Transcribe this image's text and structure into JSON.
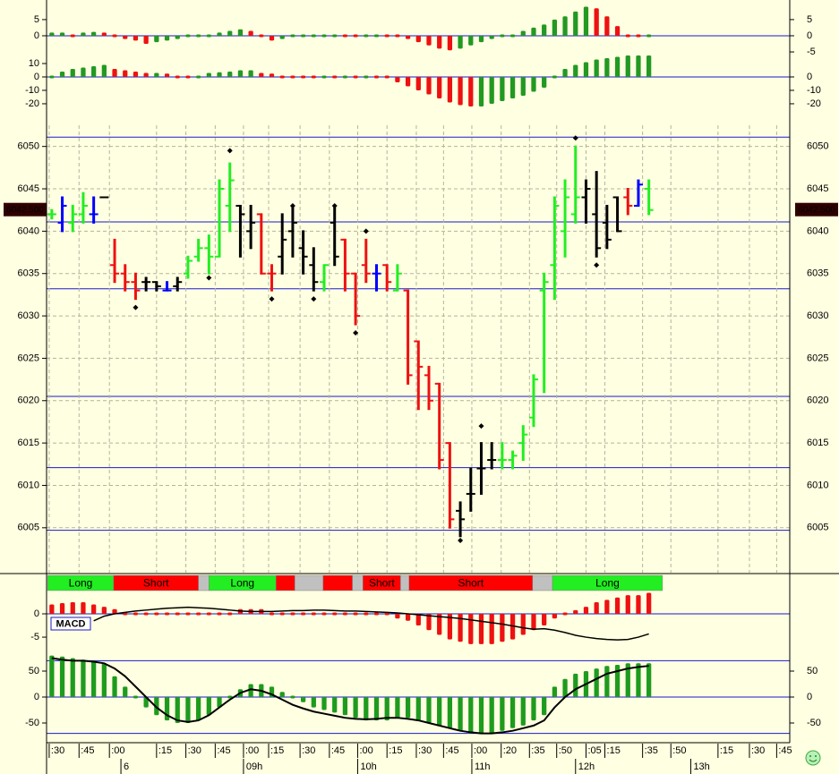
{
  "chart_data": [
    {
      "type": "bar",
      "up_color": "#229922",
      "down_color": "#ee1111",
      "xlim": [
        -0.5,
        70.45
      ],
      "ylim": [
        -6.1,
        9.4
      ],
      "yticks": [
        5,
        0
      ],
      "y2lim": [
        -6.1,
        9.4
      ],
      "y2ticks": [
        5,
        0,
        -5
      ],
      "hlines": [
        0
      ],
      "values": [
        1,
        1,
        0.8,
        1,
        1.2,
        1,
        0,
        -1,
        -1.5,
        -2.5,
        -2,
        -1.5,
        -1,
        -0.5,
        0.3,
        0.8,
        1,
        1.5,
        2,
        1.5,
        -0.5,
        -1.5,
        -1,
        -0.5,
        0,
        0.3,
        0.3,
        0.5,
        0.3,
        0,
        0.3,
        0.3,
        0.2,
        0,
        -1,
        -2,
        -3,
        -4,
        -4.5,
        -4,
        -3,
        -2,
        -1,
        -0.5,
        0.5,
        1.5,
        2.5,
        3.5,
        5,
        6,
        7.5,
        9,
        8.5,
        6,
        3,
        0.8,
        0.3,
        0.3
      ]
    },
    {
      "type": "bar",
      "up_color": "#229922",
      "down_color": "#ee1111",
      "xlim": [
        -0.5,
        70.45
      ],
      "ylim": [
        -30.7,
        16
      ],
      "yticks": [
        10,
        0,
        -10,
        -20
      ],
      "y2lim": [
        -30.7,
        16
      ],
      "y2ticks": [
        0,
        -10,
        -20
      ],
      "hlines": [
        0
      ],
      "values": [
        1,
        4,
        6,
        7,
        8,
        9,
        6,
        5,
        4,
        3,
        3,
        2.5,
        2,
        1.5,
        2,
        3,
        3.5,
        4,
        5,
        5,
        3,
        2.5,
        2,
        1.5,
        1,
        0.5,
        0.5,
        0.3,
        0.3,
        0,
        0,
        -1,
        -2,
        -4,
        -7,
        -10,
        -13,
        -16,
        -19,
        -21,
        -22,
        -22,
        -20,
        -18,
        -16,
        -14,
        -11,
        -8,
        2,
        6,
        9,
        11,
        13,
        14,
        15,
        16,
        16,
        16
      ]
    },
    {
      "type": "ohlc",
      "grid": true,
      "xlim": [
        -0.5,
        70.45
      ],
      "ylim": [
        5999.7,
        6052.5
      ],
      "yticks": [
        6005,
        6010,
        6015,
        6020,
        6025,
        6030,
        6035,
        6040,
        6045,
        6050
      ],
      "hlines": [
        6051.1,
        6041.1,
        6033.2,
        6020.5,
        6012.1,
        6004.7
      ],
      "last_price": {
        "value": 6042.5,
        "label": "6042.500"
      },
      "open": [
        6042,
        6041,
        6041,
        6042,
        6042,
        6044,
        6036,
        6035,
        6034,
        6034,
        6034,
        6033,
        6033.5,
        6035,
        6037,
        6038,
        6037,
        6043,
        6043,
        6040,
        6042,
        6035,
        6037,
        6040,
        6038,
        6036,
        6034,
        6041,
        6039,
        6035,
        6036,
        6035,
        6036,
        6033,
        6033,
        6027,
        6023,
        6022,
        6015,
        6007,
        6009,
        6012,
        6013,
        6013,
        6013,
        6015,
        6018,
        6033,
        6036,
        6040,
        6042,
        6044,
        6042,
        6041,
        6044,
        6044,
        6043,
        6045
      ],
      "high": [
        6042.5,
        6044,
        6043,
        6044.5,
        6044,
        6044,
        6039,
        6036,
        6035,
        6034.5,
        6034,
        6034,
        6034.5,
        6037,
        6039,
        6039.5,
        6046,
        6048,
        6043,
        6043,
        6042,
        6036,
        6042,
        6043,
        6040,
        6038,
        6036,
        6043,
        6039,
        6035,
        6039,
        6036,
        6036,
        6036,
        6033,
        6027,
        6024,
        6022,
        6015,
        6008,
        6012,
        6015,
        6015,
        6015,
        6014,
        6017,
        6023,
        6035,
        6044,
        6046,
        6050,
        6046,
        6047,
        6043,
        6044,
        6045,
        6046,
        6046
      ],
      "low": [
        6041.5,
        6040,
        6040,
        6041,
        6041,
        6044,
        6034,
        6033,
        6032,
        6033,
        6033,
        6033,
        6033,
        6034.5,
        6036.5,
        6035,
        6037,
        6040,
        6037,
        6038,
        6035,
        6033,
        6035,
        6037,
        6035,
        6033,
        6033,
        6036,
        6033,
        6029,
        6034,
        6033,
        6033,
        6033,
        6022,
        6019,
        6019,
        6012,
        6005,
        6004,
        6007,
        6009,
        6012,
        6012,
        6012,
        6013,
        6017,
        6021,
        6032,
        6037,
        6041,
        6041,
        6037,
        6038,
        6040,
        6042,
        6043,
        6042
      ],
      "close": [
        6042,
        6043,
        6042,
        6043,
        6042,
        6044,
        6035,
        6034,
        6033,
        6034,
        6033.5,
        6033,
        6034,
        6036.5,
        6038,
        6037,
        6045,
        6046,
        6042,
        6041,
        6035,
        6035,
        6039,
        6041,
        6037,
        6034,
        6036,
        6037,
        6035,
        6030,
        6035,
        6035,
        6034,
        6035,
        6023,
        6024,
        6020,
        6013,
        6006,
        6006,
        6009,
        6012,
        6013,
        6013,
        6013.5,
        6016,
        6022.5,
        6034,
        6043,
        6044,
        6044,
        6045,
        6038,
        6039,
        6040,
        6043,
        6045.5,
        6042.5
      ],
      "colors": [
        "#22ee22",
        "#0000ff",
        "#22ee22",
        "#22ee22",
        "#0000ff",
        "#000000",
        "#ee1111",
        "#ee1111",
        "#ee1111",
        "#000000",
        "#000000",
        "#0000ff",
        "#000000",
        "#22ee22",
        "#22ee22",
        "#22ee22",
        "#22ee22",
        "#22ee22",
        "#000000",
        "#000000",
        "#ee1111",
        "#ee1111",
        "#000000",
        "#000000",
        "#000000",
        "#000000",
        "#22ee22",
        "#000000",
        "#ee1111",
        "#ee1111",
        "#ee1111",
        "#0000ff",
        "#ee1111",
        "#22ee22",
        "#ee1111",
        "#ee1111",
        "#ee1111",
        "#ee1111",
        "#ee1111",
        "#000000",
        "#000000",
        "#000000",
        "#000000",
        "#22ee22",
        "#22ee22",
        "#22ee22",
        "#22ee22",
        "#22ee22",
        "#22ee22",
        "#22ee22",
        "#22ee22",
        "#000000",
        "#000000",
        "#000000",
        "#000000",
        "#ee1111",
        "#0000ff",
        "#22ee22"
      ],
      "pivots": [
        null,
        null,
        null,
        null,
        null,
        null,
        null,
        null,
        6031,
        null,
        null,
        null,
        null,
        null,
        null,
        6034.5,
        null,
        6049.5,
        null,
        null,
        null,
        6032,
        null,
        6043,
        null,
        6032,
        null,
        6043,
        null,
        6028,
        6040,
        null,
        null,
        null,
        null,
        null,
        null,
        null,
        null,
        6003.5,
        null,
        6017,
        null,
        null,
        null,
        null,
        null,
        null,
        null,
        null,
        6051,
        null,
        6036,
        null,
        null,
        null,
        null,
        null
      ]
    },
    {
      "type": "signals",
      "xlim": [
        -0.5,
        70.45
      ],
      "segments": [
        {
          "label": "Long",
          "from": -0.4,
          "to": 5.9,
          "color": "#22ee22"
        },
        {
          "label": "Short",
          "from": 5.9,
          "to": 14,
          "color": "#ff0000"
        },
        {
          "from": 14,
          "to": 15,
          "color": "#c0c0c0"
        },
        {
          "label": "Long",
          "from": 15,
          "to": 21.4,
          "color": "#22ee22"
        },
        {
          "from": 21.4,
          "to": 23.2,
          "color": "#ff0000"
        },
        {
          "from": 23.2,
          "to": 25.9,
          "color": "#c0c0c0"
        },
        {
          "from": 25.9,
          "to": 28.7,
          "color": "#ff0000"
        },
        {
          "from": 28.7,
          "to": 29.7,
          "color": "#c0c0c0"
        },
        {
          "label": "Short",
          "from": 29.7,
          "to": 33.3,
          "color": "#ff0000"
        },
        {
          "from": 33.3,
          "to": 34.1,
          "color": "#c0c0c0"
        },
        {
          "label": "Short",
          "from": 34.1,
          "to": 45.9,
          "color": "#ff0000"
        },
        {
          "from": 45.9,
          "to": 47.8,
          "color": "#c0c0c0"
        },
        {
          "label": "Long",
          "from": 47.8,
          "to": 58.3,
          "color": "#22ee22"
        }
      ]
    },
    {
      "type": "bar_line",
      "label": "MACD",
      "color": "#ee1111",
      "line_color": "#000000",
      "xlim": [
        -0.5,
        70.45
      ],
      "ylim": [
        -9.4,
        4.6
      ],
      "yticks": [
        0,
        -5
      ],
      "hlines": [
        0
      ],
      "values": [
        2,
        2.3,
        2.5,
        2.5,
        2,
        1.5,
        1,
        0.5,
        0.5,
        0.5,
        0.3,
        0.3,
        0.3,
        0.5,
        0.5,
        0.3,
        0.3,
        0.5,
        1,
        1,
        1,
        0.5,
        0.5,
        0.3,
        0.3,
        0.3,
        0.3,
        0.3,
        0.3,
        0,
        0,
        -0.3,
        -0.5,
        -1,
        -1.5,
        -2.5,
        -3.5,
        -4.5,
        -5.5,
        -6,
        -6.5,
        -6.5,
        -6.5,
        -6,
        -5.5,
        -4.5,
        -3.5,
        -2.5,
        -1,
        0,
        0.8,
        1.5,
        2.5,
        3,
        3.5,
        4,
        4,
        4.5
      ],
      "line": [
        null,
        null,
        null,
        null,
        -1.5,
        -0.5,
        0,
        0.3,
        0.6,
        0.8,
        1,
        1.2,
        1.3,
        1.4,
        1.3,
        1.2,
        1,
        0.8,
        0.6,
        0.5,
        0.5,
        0.5,
        0.6,
        0.7,
        0.7,
        0.8,
        0.8,
        0.7,
        0.6,
        0.6,
        0.5,
        0.4,
        0.3,
        0.2,
        0,
        -0.2,
        -0.4,
        -0.6,
        -0.8,
        -1,
        -1.3,
        -1.6,
        -1.9,
        -2.2,
        -2.6,
        -3,
        -3.3,
        -3.2,
        -3.5,
        -4,
        -4.6,
        -5,
        -5.3,
        -5.5,
        -5.6,
        -5.5,
        -5,
        -4.3
      ]
    },
    {
      "type": "bar_line",
      "color": "#1e9b1e",
      "line_color": "#000000",
      "xlim": [
        -0.5,
        70.45
      ],
      "ylim": [
        -84.5,
        72.4
      ],
      "yticks": [
        50,
        0,
        -50
      ],
      "y2lim": [
        -84.5,
        72.4
      ],
      "y2ticks": [
        50,
        0,
        -50
      ],
      "hlines": [
        70,
        0,
        -70
      ],
      "values": [
        80,
        78,
        75,
        72,
        70,
        65,
        40,
        20,
        0,
        -20,
        -35,
        -45,
        -50,
        -50,
        -45,
        -35,
        -20,
        -5,
        15,
        25,
        25,
        20,
        10,
        0,
        -10,
        -20,
        -25,
        -30,
        -35,
        -40,
        -45,
        -45,
        -45,
        -40,
        -40,
        -45,
        -50,
        -55,
        -60,
        -65,
        -70,
        -70,
        -70,
        -65,
        -60,
        -55,
        -45,
        -35,
        20,
        35,
        45,
        50,
        55,
        60,
        62,
        65,
        65,
        65
      ],
      "line": [
        75,
        72,
        70,
        70,
        68,
        65,
        55,
        40,
        20,
        0,
        -20,
        -35,
        -45,
        -48,
        -45,
        -35,
        -20,
        -5,
        8,
        15,
        12,
        5,
        -5,
        -15,
        -22,
        -28,
        -32,
        -36,
        -40,
        -42,
        -43,
        -42,
        -40,
        -40,
        -42,
        -45,
        -50,
        -55,
        -60,
        -65,
        -68,
        -70,
        -70,
        -68,
        -65,
        -60,
        -55,
        -45,
        -20,
        0,
        15,
        25,
        35,
        45,
        50,
        55,
        58,
        60
      ],
      "xticks": [
        {
          "value": -0.25,
          "label": ":30"
        },
        {
          "value": 2.6,
          "label": ":45"
        },
        {
          "value": 5.5,
          "label": ":00"
        },
        {
          "value": 10,
          "label": ":15"
        },
        {
          "value": 12.8,
          "label": ":30"
        },
        {
          "value": 15.6,
          "label": ":45"
        },
        {
          "value": 18.3,
          "label": ":00"
        },
        {
          "value": 20.7,
          "label": ":15"
        },
        {
          "value": 23.7,
          "label": ":30"
        },
        {
          "value": 26.5,
          "label": ":45"
        },
        {
          "value": 29.2,
          "label": ":00"
        },
        {
          "value": 32,
          "label": ":15"
        },
        {
          "value": 34.8,
          "label": ":30"
        },
        {
          "value": 37.4,
          "label": ":45"
        },
        {
          "value": 40.1,
          "label": ":00"
        },
        {
          "value": 42.9,
          "label": ":20"
        },
        {
          "value": 45.6,
          "label": ":35"
        },
        {
          "value": 48.2,
          "label": ":50"
        },
        {
          "value": 51,
          "label": ":05"
        },
        {
          "value": 52.8,
          "label": ":15"
        },
        {
          "value": 56.4,
          "label": ":35"
        },
        {
          "value": 59.1,
          "label": ":50"
        },
        {
          "value": 63.6,
          "label": ":15"
        },
        {
          "value": 66.6,
          "label": ":30"
        },
        {
          "value": 69.2,
          "label": ":45"
        }
      ],
      "hour_labels": [
        {
          "value": 6.6,
          "label": "6"
        },
        {
          "value": 18.3,
          "label": "09h"
        },
        {
          "value": 29.2,
          "label": "10h"
        },
        {
          "value": 40.1,
          "label": "11h"
        },
        {
          "value": 50,
          "label": "12h"
        },
        {
          "value": 61,
          "label": "13h"
        }
      ]
    }
  ]
}
